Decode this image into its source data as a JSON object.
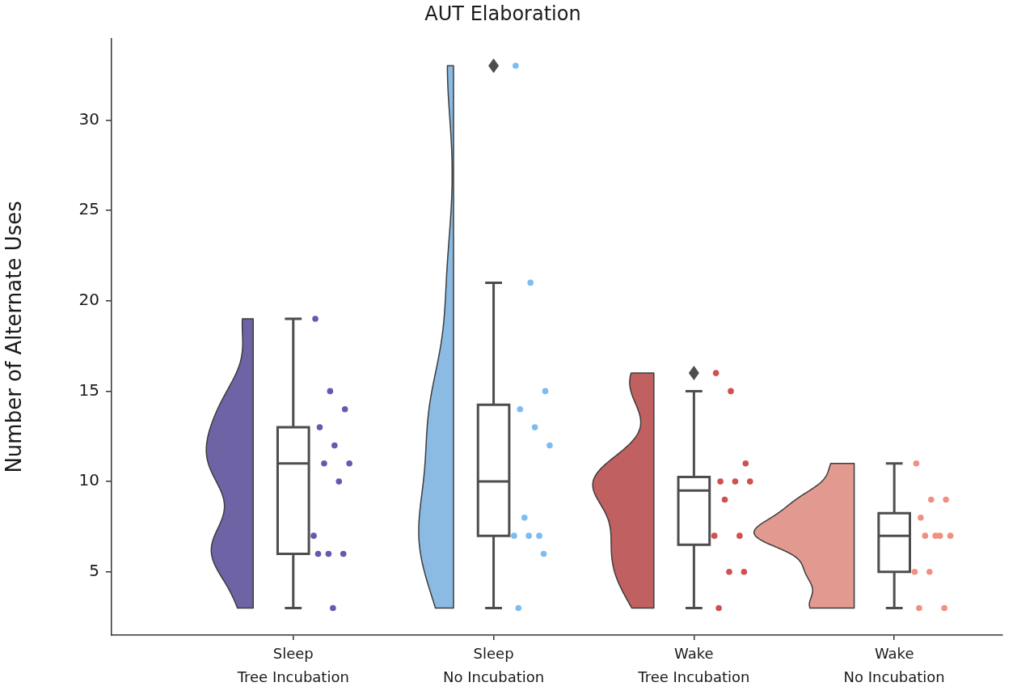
{
  "chart_data": {
    "type": "box",
    "title": "AUT Elaboration",
    "ylabel": "Number of Alternate Uses",
    "categories": [
      "Sleep\nTree Incubation",
      "Sleep\nNo Incubation",
      "Wake\nTree Incubation",
      "Wake\nNo Incubation"
    ],
    "ylim": [
      1.5,
      34.5
    ],
    "yticks": [
      5,
      10,
      15,
      20,
      25,
      30
    ],
    "color": "#4d4d4d",
    "boxes": [
      {
        "low": 3,
        "q1": 6,
        "median": 11,
        "q3": 13,
        "high": 19
      },
      {
        "low": 3,
        "q1": 7,
        "median": 10,
        "q3": 14.25,
        "high": 21,
        "outliers": [
          33
        ]
      },
      {
        "low": 3,
        "q1": 6.5,
        "median": 9.5,
        "q3": 10.25,
        "high": 15,
        "outliers": [
          16
        ]
      },
      {
        "low": 3,
        "q1": 5,
        "median": 7,
        "q3": 8.25,
        "high": 11
      }
    ],
    "series": [
      {
        "type": "scatter",
        "marker": "circle",
        "color": "#6659b0",
        "x": [
          "Sleep\nTree Incubation",
          "Sleep\nTree Incubation",
          "Sleep\nTree Incubation",
          "Sleep\nTree Incubation",
          "Sleep\nTree Incubation",
          "Sleep\nTree Incubation",
          "Sleep\nTree Incubation",
          "Sleep\nTree Incubation",
          "Sleep\nTree Incubation",
          "Sleep\nTree Incubation",
          "Sleep\nTree Incubation",
          "Sleep\nTree Incubation",
          "Sleep\nTree Incubation"
        ],
        "values": [
          19,
          15,
          14,
          13,
          12,
          11,
          11,
          10,
          7,
          6,
          6,
          6,
          3
        ]
      },
      {
        "type": "scatter",
        "marker": "circle",
        "color": "#7dbcf0",
        "x": [
          "Sleep\nNo Incubation",
          "Sleep\nNo Incubation",
          "Sleep\nNo Incubation",
          "Sleep\nNo Incubation",
          "Sleep\nNo Incubation",
          "Sleep\nNo Incubation",
          "Sleep\nNo Incubation",
          "Sleep\nNo Incubation",
          "Sleep\nNo Incubation",
          "Sleep\nNo Incubation",
          "Sleep\nNo Incubation",
          "Sleep\nNo Incubation"
        ],
        "values": [
          33,
          21,
          15,
          14,
          13,
          12,
          8,
          7,
          7,
          7,
          6,
          3
        ]
      },
      {
        "type": "scatter",
        "marker": "circle",
        "color": "#d05050",
        "x": [
          "Wake\nTree Incubation",
          "Wake\nTree Incubation",
          "Wake\nTree Incubation",
          "Wake\nTree Incubation",
          "Wake\nTree Incubation",
          "Wake\nTree Incubation",
          "Wake\nTree Incubation",
          "Wake\nTree Incubation",
          "Wake\nTree Incubation",
          "Wake\nTree Incubation",
          "Wake\nTree Incubation",
          "Wake\nTree Incubation"
        ],
        "values": [
          16,
          15,
          11,
          10,
          10,
          10,
          9,
          7,
          7,
          5,
          5,
          3
        ]
      },
      {
        "type": "scatter",
        "marker": "circle",
        "color": "#f09082",
        "x": [
          "Wake\nNo Incubation",
          "Wake\nNo Incubation",
          "Wake\nNo Incubation",
          "Wake\nNo Incubation",
          "Wake\nNo Incubation",
          "Wake\nNo Incubation",
          "Wake\nNo Incubation",
          "Wake\nNo Incubation",
          "Wake\nNo Incubation",
          "Wake\nNo Incubation",
          "Wake\nNo Incubation",
          "Wake\nNo Incubation"
        ],
        "values": [
          11,
          9,
          9,
          8,
          7,
          7,
          7,
          7,
          5,
          5,
          3,
          3
        ]
      }
    ]
  }
}
